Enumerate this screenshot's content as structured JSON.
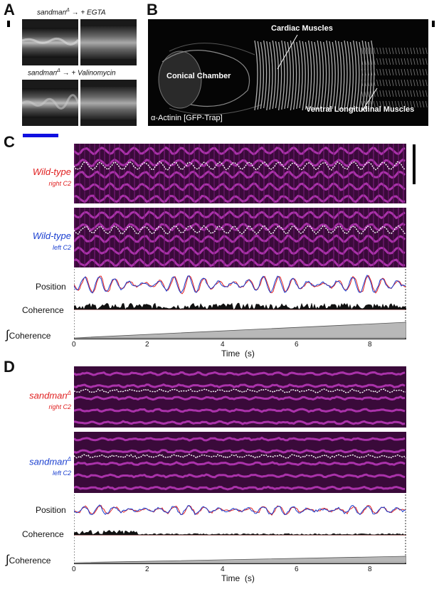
{
  "panel_a": {
    "letter": "A",
    "top_caption": {
      "name": "sandman",
      "sup": "Δ",
      "arrow": "→",
      "treatment": "+ EGTA"
    },
    "bottom_caption": {
      "name": "sandman",
      "sup": "Δ",
      "arrow": "→",
      "treatment": "+ Valinomycin"
    }
  },
  "panel_b": {
    "letter": "B",
    "labels": {
      "cardiac": "Cardiac Muscles",
      "conical": "Conical Chamber",
      "ventral": "Ventral Longitudinal Muscles",
      "stain": "α-Actinin [GFP-Trap]"
    }
  },
  "panel_c": {
    "letter": "C",
    "top_label": {
      "main": "Wild-type",
      "sub": "right C2",
      "color": "#e02020"
    },
    "mid_label": {
      "main": "Wild-type",
      "sub": "left C2",
      "color": "#1a3fd0"
    },
    "rows": {
      "position": "Position",
      "coherence": "Coherence",
      "integral_symbol": "∫",
      "integral": "Coherence"
    },
    "axis": {
      "ticks": [
        "0",
        "2",
        "4",
        "6",
        "8"
      ],
      "title": "Time  (s)"
    }
  },
  "panel_d": {
    "letter": "D",
    "top_label": {
      "main": "sandman",
      "sup": "Δ",
      "sub": "right C2",
      "color": "#e02020"
    },
    "mid_label": {
      "main": "sandman",
      "sup": "Δ",
      "sub": "left C2",
      "color": "#1a3fd0"
    },
    "rows": {
      "position": "Position",
      "coherence": "Coherence",
      "integral_symbol": "∫",
      "integral": "Coherence"
    },
    "axis": {
      "ticks": [
        "0",
        "2",
        "4",
        "6",
        "8"
      ],
      "title": "Time  (s)"
    }
  },
  "colors": {
    "magenta": "#c020c0",
    "red_trace": "#e02020",
    "blue_trace": "#1a3fd0",
    "scale_blue": "#1010e0"
  }
}
